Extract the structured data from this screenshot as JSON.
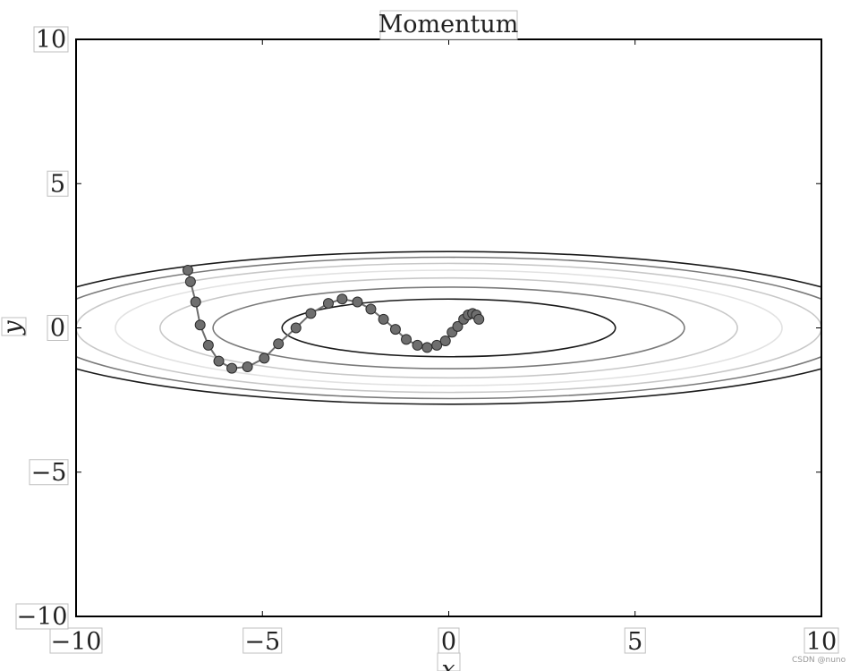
{
  "chart_data": {
    "type": "line",
    "title": "Momentum",
    "xlabel": "x",
    "ylabel": "y",
    "xlim": [
      -10,
      10
    ],
    "ylim": [
      -10,
      10
    ],
    "xticks": [
      -10,
      -5,
      0,
      5,
      10
    ],
    "yticks": [
      -10,
      -5,
      0,
      5,
      10
    ],
    "xtick_labels": [
      "−10",
      "−5",
      "0",
      "5",
      "10"
    ],
    "ytick_labels": [
      "−10",
      "−5",
      "0",
      "5",
      "10"
    ],
    "grid": false,
    "contours": {
      "function": "f(x, y) = x^2/20 + y^2",
      "levels": [
        {
          "level": 1,
          "color": "#1a1a1a"
        },
        {
          "level": 2,
          "color": "#7a7a7a"
        },
        {
          "level": 3,
          "color": "#c8c8c8"
        },
        {
          "level": 4,
          "color": "#e2e2e2"
        },
        {
          "level": 5,
          "color": "#c8c8c8"
        },
        {
          "level": 6,
          "color": "#7a7a7a"
        },
        {
          "level": 7,
          "color": "#1a1a1a"
        }
      ]
    },
    "series": [
      {
        "color": "#6e6e6e",
        "x": [
          -7.0,
          -6.93,
          -6.79,
          -6.67,
          -6.45,
          -6.17,
          -5.82,
          -5.4,
          -4.95,
          -4.57,
          -4.1,
          -3.7,
          -3.23,
          -2.86,
          -2.45,
          -2.09,
          -1.75,
          -1.43,
          -1.14,
          -0.84,
          -0.58,
          -0.32,
          -0.09,
          0.09,
          0.24,
          0.4,
          0.52,
          0.64,
          0.74,
          0.81
        ],
        "y": [
          2.0,
          1.6,
          0.9,
          0.1,
          -0.6,
          -1.15,
          -1.4,
          -1.35,
          -1.05,
          -0.55,
          0.0,
          0.5,
          0.85,
          1.0,
          0.9,
          0.65,
          0.3,
          -0.05,
          -0.4,
          -0.6,
          -0.68,
          -0.6,
          -0.45,
          -0.15,
          0.05,
          0.3,
          0.45,
          0.5,
          0.45,
          0.3
        ]
      }
    ]
  },
  "watermark": "CSDN @nuno"
}
